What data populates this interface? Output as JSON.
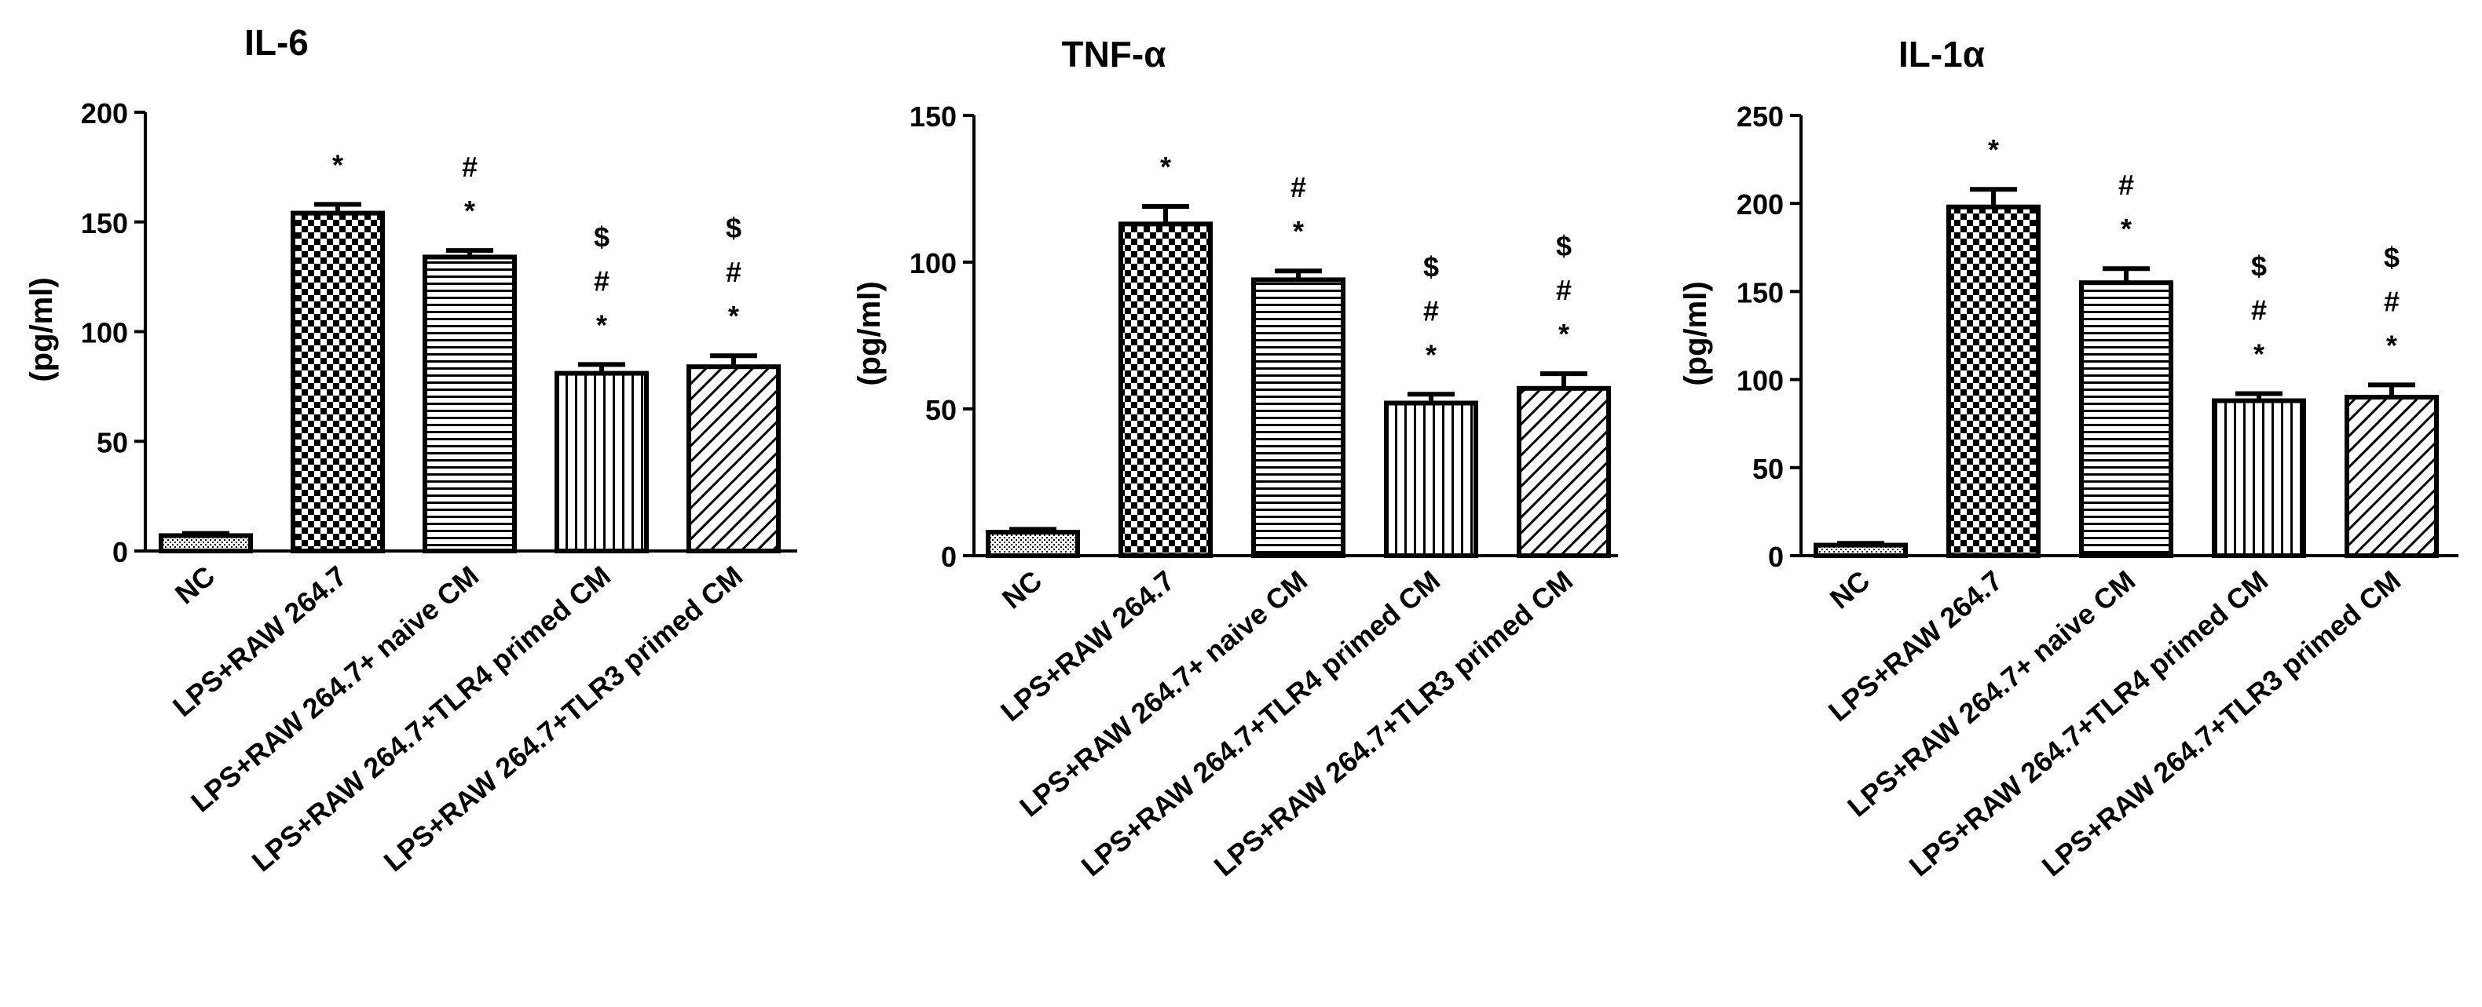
{
  "chart_data": [
    {
      "type": "bar",
      "title": "IL-6",
      "ylabel": "(pg/ml)",
      "xlabel": "",
      "ylim": [
        0,
        200
      ],
      "yticks": [
        0,
        50,
        100,
        150,
        200
      ],
      "categories": [
        "NC",
        "LPS+RAW 264.7",
        "LPS+RAW 264.7+ naive CM",
        "LPS+RAW 264.7+TLR4 primed CM",
        "LPS+RAW 264.7+TLR3 primed CM"
      ],
      "values": [
        7,
        154,
        134,
        81,
        84
      ],
      "errors": [
        1,
        4,
        3,
        4,
        5
      ],
      "annotations": [
        [],
        [
          "*"
        ],
        [
          "#",
          "*"
        ],
        [
          "$",
          "#",
          "*"
        ],
        [
          "$",
          "#",
          "*"
        ]
      ]
    },
    {
      "type": "bar",
      "title": "TNF-α",
      "ylabel": "(pg/ml)",
      "xlabel": "",
      "ylim": [
        0,
        150
      ],
      "yticks": [
        0,
        50,
        100,
        150
      ],
      "categories": [
        "NC",
        "LPS+RAW 264.7",
        "LPS+RAW 264.7+ naive CM",
        "LPS+RAW 264.7+TLR4 primed CM",
        "LPS+RAW 264.7+TLR3 primed CM"
      ],
      "values": [
        8,
        113,
        94,
        52,
        57
      ],
      "errors": [
        1,
        6,
        3,
        3,
        5
      ],
      "annotations": [
        [],
        [
          "*"
        ],
        [
          "#",
          "*"
        ],
        [
          "$",
          "#",
          "*"
        ],
        [
          "$",
          "#",
          "*"
        ]
      ]
    },
    {
      "type": "bar",
      "title": "IL-1α",
      "ylabel": "(pg/ml)",
      "xlabel": "",
      "ylim": [
        0,
        250
      ],
      "yticks": [
        0,
        50,
        100,
        150,
        200,
        250
      ],
      "categories": [
        "NC",
        "LPS+RAW 264.7",
        "LPS+RAW 264.7+ naive CM",
        "LPS+RAW 264.7+TLR4 primed CM",
        "LPS+RAW 264.7+TLR3 primed CM"
      ],
      "values": [
        6,
        198,
        155,
        88,
        90
      ],
      "errors": [
        1,
        10,
        8,
        4,
        7
      ],
      "annotations": [
        [],
        [
          "*"
        ],
        [
          "#",
          "*"
        ],
        [
          "$",
          "#",
          "*"
        ],
        [
          "$",
          "#",
          "*"
        ]
      ]
    }
  ]
}
